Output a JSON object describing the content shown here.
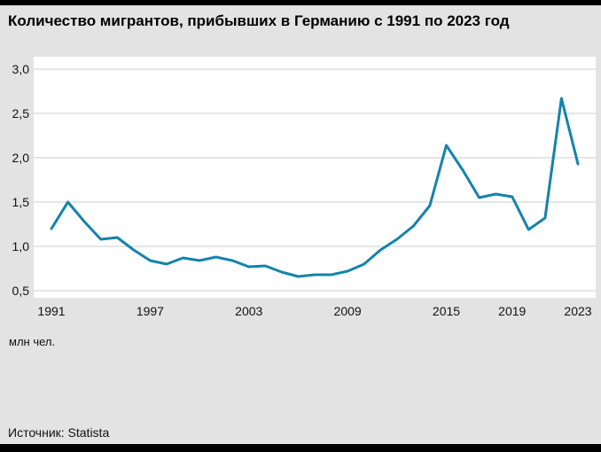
{
  "header": {
    "title": "Количество мигрантов, прибывших в Германию с 1991 по 2023 год"
  },
  "unit_label": "млн чел.",
  "footer": {
    "source": "Источник: Statista"
  },
  "colors": {
    "line": "#1483ab",
    "grid": "#cccccc",
    "plot_background": "#ffffff",
    "page_background": "#e3e3e3",
    "bars": "#000000"
  },
  "chart_data": {
    "type": "line",
    "title": "Количество мигрантов, прибывших в Германию с 1991 по 2023 год",
    "xlabel": "",
    "ylabel": "млн чел.",
    "x": [
      1991,
      1992,
      1993,
      1994,
      1995,
      1996,
      1997,
      1998,
      1999,
      2000,
      2001,
      2002,
      2003,
      2004,
      2005,
      2006,
      2007,
      2008,
      2009,
      2010,
      2011,
      2012,
      2013,
      2014,
      2015,
      2016,
      2017,
      2018,
      2019,
      2020,
      2021,
      2022,
      2023
    ],
    "values": [
      1.2,
      1.5,
      1.28,
      1.08,
      1.1,
      0.96,
      0.84,
      0.8,
      0.87,
      0.84,
      0.88,
      0.84,
      0.77,
      0.78,
      0.71,
      0.66,
      0.68,
      0.68,
      0.72,
      0.8,
      0.96,
      1.08,
      1.23,
      1.46,
      2.14,
      1.86,
      1.55,
      1.59,
      1.56,
      1.19,
      1.32,
      2.67,
      1.93
    ],
    "ylim": [
      0.5,
      3.0
    ],
    "yticks": [
      0.5,
      1.0,
      1.5,
      2.0,
      2.5,
      3.0
    ],
    "ytick_labels": [
      "0,5",
      "1,0",
      "1,5",
      "2,0",
      "2,5",
      "3,0"
    ],
    "xticks": [
      1991,
      1997,
      2003,
      2009,
      2015,
      2019,
      2023
    ],
    "grid": "horizontal",
    "legend": "none",
    "source": "Statista"
  }
}
